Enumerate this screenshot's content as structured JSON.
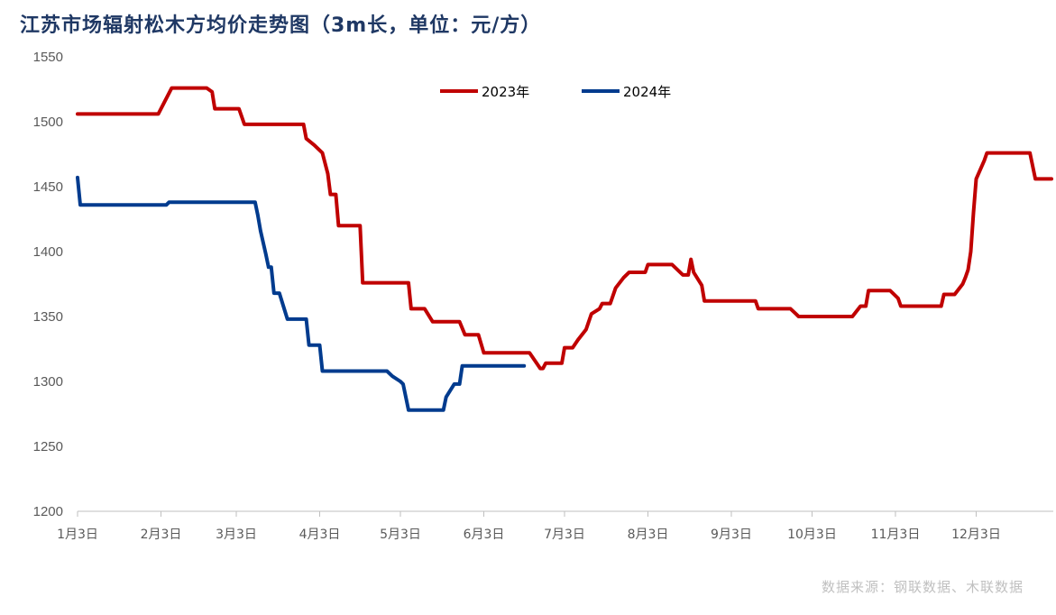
{
  "title": "江苏市场辐射松木方均价走势图（3m长，单位：元/方）",
  "source": "数据来源：钢联数据、木联数据",
  "colors": {
    "s2023": "#c00000",
    "s2024": "#003b8e",
    "axis": "#bfbfbf"
  },
  "chart_data": {
    "type": "line",
    "title": "江苏市场辐射松木方均价走势图（3m长，单位：元/方）",
    "x_axis": "date (month-day)",
    "x_ticks": [
      "1月3日",
      "2月3日",
      "3月3日",
      "4月3日",
      "5月3日",
      "6月3日",
      "7月3日",
      "8月3日",
      "9月3日",
      "10月3日",
      "11月3日",
      "12月3日"
    ],
    "y_ticks": [
      1200,
      1250,
      1300,
      1350,
      1400,
      1450,
      1500,
      1550
    ],
    "ylim": [
      1200,
      1550
    ],
    "grid": false,
    "legend_position": "top-center",
    "series": [
      {
        "name": "2023年",
        "color": "#c00000",
        "points": [
          [
            "01-03",
            1506
          ],
          [
            "01-10",
            1506
          ],
          [
            "01-20",
            1506
          ],
          [
            "02-02",
            1506
          ],
          [
            "02-07",
            1526
          ],
          [
            "02-15",
            1526
          ],
          [
            "02-20",
            1526
          ],
          [
            "02-22",
            1523
          ],
          [
            "02-23",
            1510
          ],
          [
            "03-01",
            1510
          ],
          [
            "03-04",
            1510
          ],
          [
            "03-06",
            1498
          ],
          [
            "03-15",
            1498
          ],
          [
            "03-25",
            1498
          ],
          [
            "03-28",
            1498
          ],
          [
            "03-29",
            1487
          ],
          [
            "04-01",
            1482
          ],
          [
            "04-03",
            1478
          ],
          [
            "04-04",
            1476
          ],
          [
            "04-06",
            1460
          ],
          [
            "04-07",
            1444
          ],
          [
            "04-09",
            1444
          ],
          [
            "04-10",
            1420
          ],
          [
            "04-15",
            1420
          ],
          [
            "04-18",
            1420
          ],
          [
            "04-19",
            1376
          ],
          [
            "04-25",
            1376
          ],
          [
            "05-06",
            1376
          ],
          [
            "05-07",
            1356
          ],
          [
            "05-12",
            1356
          ],
          [
            "05-15",
            1346
          ],
          [
            "05-25",
            1346
          ],
          [
            "05-27",
            1336
          ],
          [
            "06-01",
            1336
          ],
          [
            "06-03",
            1322
          ],
          [
            "06-12",
            1322
          ],
          [
            "06-20",
            1322
          ],
          [
            "06-22",
            1316
          ],
          [
            "06-24",
            1310
          ],
          [
            "06-25",
            1310
          ],
          [
            "06-26",
            1314
          ],
          [
            "07-02",
            1314
          ],
          [
            "07-03",
            1326
          ],
          [
            "07-06",
            1326
          ],
          [
            "07-08",
            1332
          ],
          [
            "07-11",
            1340
          ],
          [
            "07-13",
            1352
          ],
          [
            "07-16",
            1356
          ],
          [
            "07-17",
            1360
          ],
          [
            "07-20",
            1360
          ],
          [
            "07-22",
            1372
          ],
          [
            "07-25",
            1380
          ],
          [
            "07-27",
            1384
          ],
          [
            "08-02",
            1384
          ],
          [
            "08-03",
            1390
          ],
          [
            "08-12",
            1390
          ],
          [
            "08-16",
            1382
          ],
          [
            "08-18",
            1382
          ],
          [
            "08-19",
            1394
          ],
          [
            "08-20",
            1384
          ],
          [
            "08-23",
            1374
          ],
          [
            "08-24",
            1362
          ],
          [
            "09-03",
            1362
          ],
          [
            "09-12",
            1362
          ],
          [
            "09-13",
            1356
          ],
          [
            "09-25",
            1356
          ],
          [
            "09-27",
            1352
          ],
          [
            "09-28",
            1350
          ],
          [
            "10-15",
            1350
          ],
          [
            "10-18",
            1350
          ],
          [
            "10-21",
            1358
          ],
          [
            "10-23",
            1358
          ],
          [
            "10-24",
            1370
          ],
          [
            "11-01",
            1370
          ],
          [
            "11-02",
            1368
          ],
          [
            "11-04",
            1364
          ],
          [
            "11-05",
            1358
          ],
          [
            "11-20",
            1358
          ],
          [
            "11-21",
            1367
          ],
          [
            "11-25",
            1367
          ],
          [
            "11-28",
            1375
          ],
          [
            "11-29",
            1380
          ],
          [
            "11-30",
            1386
          ],
          [
            "12-01",
            1400
          ],
          [
            "12-02",
            1430
          ],
          [
            "12-03",
            1456
          ],
          [
            "12-06",
            1470
          ],
          [
            "12-07",
            1476
          ],
          [
            "12-20",
            1476
          ],
          [
            "12-23",
            1476
          ],
          [
            "12-25",
            1456
          ],
          [
            "12-31",
            1456
          ]
        ]
      },
      {
        "name": "2024年",
        "color": "#003b8e",
        "points": [
          [
            "01-03",
            1457
          ],
          [
            "01-04",
            1436
          ],
          [
            "01-15",
            1436
          ],
          [
            "02-01",
            1436
          ],
          [
            "02-05",
            1436
          ],
          [
            "02-06",
            1438
          ],
          [
            "02-20",
            1438
          ],
          [
            "03-10",
            1438
          ],
          [
            "03-11",
            1428
          ],
          [
            "03-12",
            1416
          ],
          [
            "03-14",
            1398
          ],
          [
            "03-15",
            1388
          ],
          [
            "03-16",
            1388
          ],
          [
            "03-17",
            1368
          ],
          [
            "03-19",
            1368
          ],
          [
            "03-22",
            1348
          ],
          [
            "03-26",
            1348
          ],
          [
            "03-29",
            1348
          ],
          [
            "03-30",
            1328
          ],
          [
            "04-03",
            1328
          ],
          [
            "04-04",
            1308
          ],
          [
            "04-15",
            1308
          ],
          [
            "04-25",
            1308
          ],
          [
            "04-28",
            1308
          ],
          [
            "04-30",
            1304
          ],
          [
            "05-03",
            1300
          ],
          [
            "05-04",
            1298
          ],
          [
            "05-06",
            1278
          ],
          [
            "05-18",
            1278
          ],
          [
            "05-19",
            1278
          ],
          [
            "05-20",
            1288
          ],
          [
            "05-23",
            1298
          ],
          [
            "05-25",
            1298
          ],
          [
            "05-26",
            1312
          ],
          [
            "06-05",
            1312
          ],
          [
            "06-18",
            1312
          ]
        ]
      }
    ]
  }
}
